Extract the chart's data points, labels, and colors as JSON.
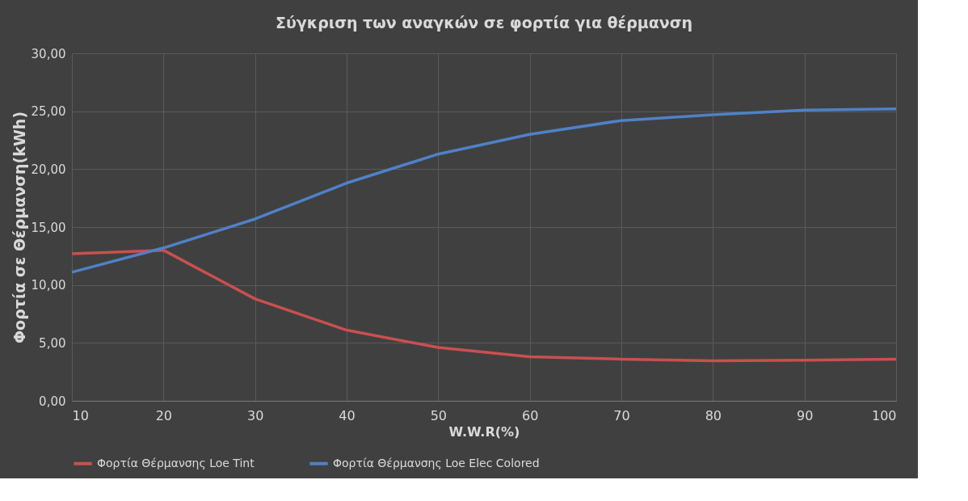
{
  "chart_data": {
    "type": "line",
    "title": "Σύγκριση των αναγκών σε φορτία για θέρμανση",
    "xlabel": "W.W.R(%)",
    "ylabel": "Φορτία σε Θέρμανση(kWh)",
    "x": [
      10,
      20,
      30,
      40,
      50,
      60,
      70,
      80,
      90,
      100
    ],
    "series": [
      {
        "name": "Φορτία Θέρμανσης Loe Tint",
        "color": "#c9504f",
        "values": [
          12.7,
          13.0,
          8.8,
          6.1,
          4.6,
          3.8,
          3.6,
          3.45,
          3.5,
          3.6
        ]
      },
      {
        "name": "Φορτία Θέρμανσης Loe Elec Colored",
        "color": "#4f81c7",
        "values": [
          11.1,
          13.2,
          15.7,
          18.8,
          21.3,
          23.0,
          24.2,
          24.7,
          25.1,
          25.2
        ]
      }
    ],
    "xlim": [
      10,
      100
    ],
    "xticks": [
      10,
      20,
      30,
      40,
      50,
      60,
      70,
      80,
      90,
      100
    ],
    "ylim": [
      0,
      30
    ],
    "yticks": [
      {
        "value": 0,
        "label": "0,00"
      },
      {
        "value": 5,
        "label": "5,00"
      },
      {
        "value": 10,
        "label": "10,00"
      },
      {
        "value": 15,
        "label": "15,00"
      },
      {
        "value": 20,
        "label": "20,00"
      },
      {
        "value": 25,
        "label": "25,00"
      },
      {
        "value": 30,
        "label": "30,00"
      }
    ],
    "grid": true,
    "legend": "bottom",
    "marker": "none",
    "line_style": "solid"
  }
}
